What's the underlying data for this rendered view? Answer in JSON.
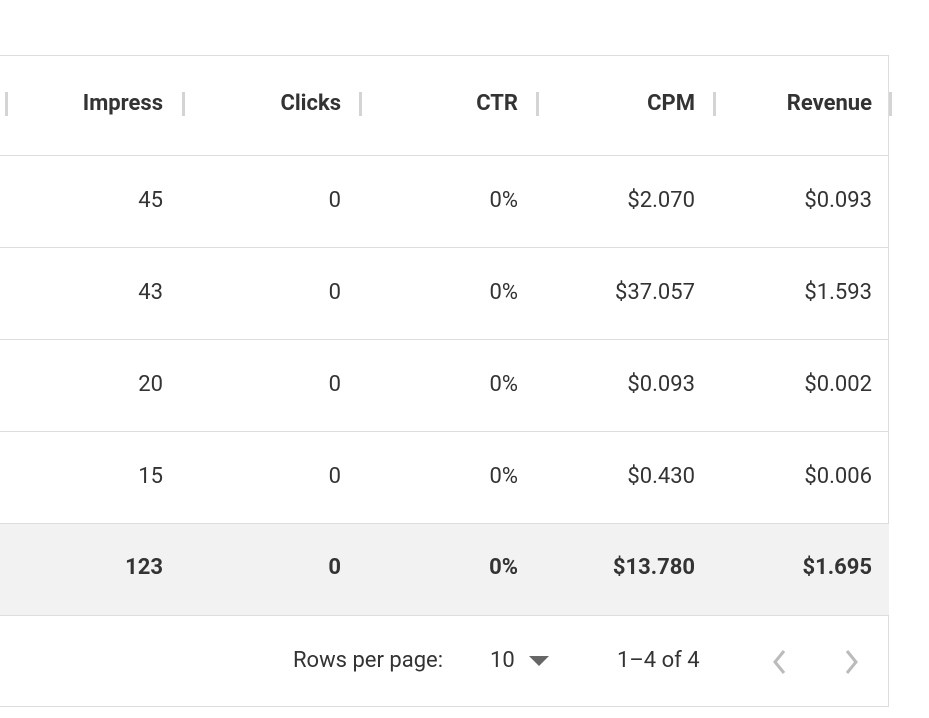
{
  "table": {
    "headers": [
      "Impress",
      "Clicks",
      "CTR",
      "CPM",
      "Revenue"
    ],
    "rows": [
      [
        "45",
        "0",
        "0%",
        "$2.070",
        "$0.093"
      ],
      [
        "43",
        "0",
        "0%",
        "$37.057",
        "$1.593"
      ],
      [
        "20",
        "0",
        "0%",
        "$0.093",
        "$0.002"
      ],
      [
        "15",
        "0",
        "0%",
        "$0.430",
        "$0.006"
      ]
    ],
    "totals": [
      "123",
      "0",
      "0%",
      "$13.780",
      "$1.695"
    ]
  },
  "pagination": {
    "rows_per_page_label": "Rows per page:",
    "rows_per_page": "10",
    "range": "1–4 of 4"
  }
}
